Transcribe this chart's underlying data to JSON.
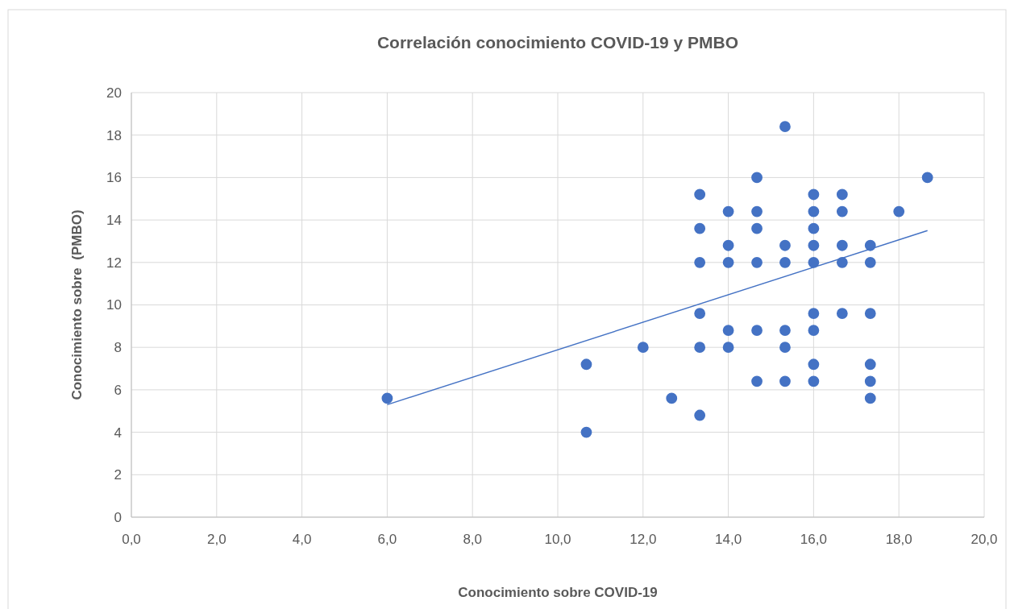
{
  "chart_data": {
    "type": "scatter",
    "title": "Correlación conocimiento COVID-19 y PMBO",
    "xlabel": "Conocimiento sobre COVID-19",
    "ylabel": "Conocimiento sobre  (PMBO)",
    "xlim": [
      0,
      20
    ],
    "ylim": [
      0,
      20
    ],
    "xticks": [
      {
        "value": 0,
        "label": "0,0"
      },
      {
        "value": 2,
        "label": "2,0"
      },
      {
        "value": 4,
        "label": "4,0"
      },
      {
        "value": 6,
        "label": "6,0"
      },
      {
        "value": 8,
        "label": "8,0"
      },
      {
        "value": 10,
        "label": "10,0"
      },
      {
        "value": 12,
        "label": "12,0"
      },
      {
        "value": 14,
        "label": "14,0"
      },
      {
        "value": 16,
        "label": "16,0"
      },
      {
        "value": 18,
        "label": "18,0"
      },
      {
        "value": 20,
        "label": "20,0"
      }
    ],
    "yticks": [
      0,
      2,
      4,
      6,
      8,
      10,
      12,
      14,
      16,
      18,
      20
    ],
    "grid": true,
    "series": [
      {
        "marker": "circle",
        "color": "#4472c4",
        "x": [
          6,
          10.67,
          10.67,
          12,
          12.67,
          13.33,
          13.33,
          13.33,
          13.33,
          13.33,
          13.33,
          14,
          14,
          14,
          14,
          14,
          14.67,
          14.67,
          14.67,
          14.67,
          14.67,
          14.67,
          15.33,
          15.33,
          15.33,
          15.33,
          15.33,
          15.33,
          16,
          16,
          16,
          16,
          16,
          16,
          16,
          16,
          16,
          16.67,
          16.67,
          16.67,
          16.67,
          16.67,
          17.33,
          17.33,
          17.33,
          17.33,
          17.33,
          17.33,
          18,
          18.67
        ],
        "values": [
          5.6,
          7.2,
          4,
          8,
          5.6,
          15.2,
          13.6,
          12,
          9.6,
          8,
          4.8,
          14.4,
          12.8,
          12,
          8.8,
          8,
          16,
          14.4,
          13.6,
          12,
          8.8,
          6.4,
          18.4,
          12.8,
          12,
          8.8,
          8,
          6.4,
          15.2,
          14.4,
          13.6,
          12.8,
          12,
          9.6,
          8.8,
          7.2,
          6.4,
          15.2,
          14.4,
          12.8,
          12,
          9.6,
          12.8,
          12,
          9.6,
          7.2,
          6.4,
          5.6,
          14.4,
          16
        ]
      },
      {
        "type": "line",
        "marker": "none",
        "color": "#4472c4",
        "x": [
          6,
          18.67
        ],
        "values": [
          5.3,
          13.5
        ]
      }
    ]
  }
}
